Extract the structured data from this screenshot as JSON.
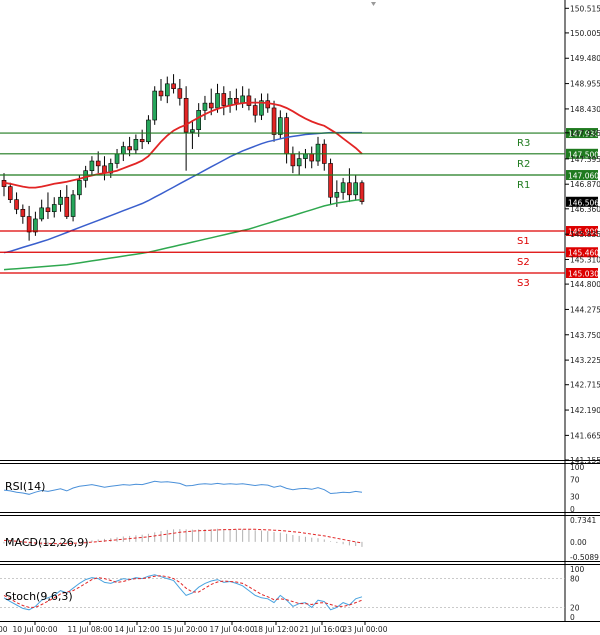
{
  "chart_data": {
    "type": "candlestick",
    "main": {
      "ylim": [
        141.155,
        150.687
      ],
      "yticks": [
        150.515,
        150.005,
        149.48,
        148.955,
        148.43,
        147.935,
        147.395,
        146.87,
        146.36,
        145.835,
        145.31,
        144.8,
        144.275,
        143.75,
        143.225,
        142.715,
        142.19,
        141.665,
        141.155
      ],
      "xticks": [
        "10 Jul 00:00",
        "11 Jul 08:00",
        "14 Jul 12:00",
        "15 Jul 20:00",
        "17 Jul 04:00",
        "18 Jul 12:00",
        "21 Jul 16:00",
        "23 Jul 00:00"
      ],
      "candles": [
        {
          "o": 146.95,
          "h": 147.1,
          "l": 146.62,
          "c": 146.82
        },
        {
          "o": 146.82,
          "h": 146.9,
          "l": 146.48,
          "c": 146.55
        },
        {
          "o": 146.55,
          "h": 146.7,
          "l": 146.25,
          "c": 146.35
        },
        {
          "o": 146.35,
          "h": 146.45,
          "l": 146.05,
          "c": 146.2
        },
        {
          "o": 146.2,
          "h": 146.42,
          "l": 145.7,
          "c": 145.88
        },
        {
          "o": 145.88,
          "h": 146.3,
          "l": 145.8,
          "c": 146.15
        },
        {
          "o": 146.15,
          "h": 146.55,
          "l": 146.1,
          "c": 146.38
        },
        {
          "o": 146.38,
          "h": 146.7,
          "l": 146.15,
          "c": 146.3
        },
        {
          "o": 146.3,
          "h": 146.6,
          "l": 146.18,
          "c": 146.45
        },
        {
          "o": 146.45,
          "h": 146.75,
          "l": 146.3,
          "c": 146.6
        },
        {
          "o": 146.6,
          "h": 146.85,
          "l": 146.15,
          "c": 146.2
        },
        {
          "o": 146.2,
          "h": 146.75,
          "l": 146.1,
          "c": 146.65
        },
        {
          "o": 146.65,
          "h": 147.05,
          "l": 146.55,
          "c": 146.95
        },
        {
          "o": 146.95,
          "h": 147.25,
          "l": 146.8,
          "c": 147.15
        },
        {
          "o": 147.15,
          "h": 147.45,
          "l": 147.05,
          "c": 147.35
        },
        {
          "o": 147.35,
          "h": 147.55,
          "l": 147.1,
          "c": 147.25
        },
        {
          "o": 147.25,
          "h": 147.45,
          "l": 146.95,
          "c": 147.1
        },
        {
          "o": 147.1,
          "h": 147.4,
          "l": 147.0,
          "c": 147.3
        },
        {
          "o": 147.3,
          "h": 147.6,
          "l": 147.2,
          "c": 147.5
        },
        {
          "o": 147.5,
          "h": 147.75,
          "l": 147.35,
          "c": 147.65
        },
        {
          "o": 147.65,
          "h": 147.85,
          "l": 147.45,
          "c": 147.58
        },
        {
          "o": 147.58,
          "h": 147.9,
          "l": 147.5,
          "c": 147.8
        },
        {
          "o": 147.8,
          "h": 148.0,
          "l": 147.6,
          "c": 147.75
        },
        {
          "o": 147.75,
          "h": 148.3,
          "l": 147.7,
          "c": 148.2
        },
        {
          "o": 148.2,
          "h": 148.9,
          "l": 148.1,
          "c": 148.8
        },
        {
          "o": 148.8,
          "h": 149.05,
          "l": 148.6,
          "c": 148.7
        },
        {
          "o": 148.7,
          "h": 149.1,
          "l": 148.55,
          "c": 148.95
        },
        {
          "o": 148.95,
          "h": 149.15,
          "l": 148.75,
          "c": 148.85
        },
        {
          "o": 148.85,
          "h": 149.05,
          "l": 148.5,
          "c": 148.65
        },
        {
          "o": 148.65,
          "h": 148.9,
          "l": 147.15,
          "c": 147.95
        },
        {
          "o": 147.95,
          "h": 148.2,
          "l": 147.6,
          "c": 148.0
        },
        {
          "o": 148.0,
          "h": 148.55,
          "l": 147.85,
          "c": 148.4
        },
        {
          "o": 148.4,
          "h": 148.7,
          "l": 148.2,
          "c": 148.55
        },
        {
          "o": 148.55,
          "h": 148.85,
          "l": 148.3,
          "c": 148.45
        },
        {
          "o": 148.45,
          "h": 148.95,
          "l": 148.35,
          "c": 148.75
        },
        {
          "o": 148.75,
          "h": 148.9,
          "l": 148.3,
          "c": 148.5
        },
        {
          "o": 148.5,
          "h": 148.8,
          "l": 148.35,
          "c": 148.65
        },
        {
          "o": 148.65,
          "h": 148.85,
          "l": 148.4,
          "c": 148.55
        },
        {
          "o": 148.55,
          "h": 148.9,
          "l": 148.45,
          "c": 148.7
        },
        {
          "o": 148.7,
          "h": 148.85,
          "l": 148.4,
          "c": 148.5
        },
        {
          "o": 148.5,
          "h": 148.65,
          "l": 148.15,
          "c": 148.3
        },
        {
          "o": 148.3,
          "h": 148.75,
          "l": 148.2,
          "c": 148.6
        },
        {
          "o": 148.6,
          "h": 148.75,
          "l": 148.35,
          "c": 148.45
        },
        {
          "o": 148.45,
          "h": 148.6,
          "l": 147.75,
          "c": 147.9
        },
        {
          "o": 147.9,
          "h": 148.4,
          "l": 147.8,
          "c": 148.25
        },
        {
          "o": 148.25,
          "h": 148.35,
          "l": 147.3,
          "c": 147.5
        },
        {
          "o": 147.5,
          "h": 147.65,
          "l": 147.1,
          "c": 147.25
        },
        {
          "o": 147.25,
          "h": 147.55,
          "l": 147.05,
          "c": 147.4
        },
        {
          "o": 147.4,
          "h": 147.6,
          "l": 147.2,
          "c": 147.5
        },
        {
          "o": 147.5,
          "h": 147.65,
          "l": 147.2,
          "c": 147.35
        },
        {
          "o": 147.35,
          "h": 147.85,
          "l": 147.25,
          "c": 147.7
        },
        {
          "o": 147.7,
          "h": 147.8,
          "l": 147.15,
          "c": 147.3
        },
        {
          "o": 147.3,
          "h": 147.4,
          "l": 146.45,
          "c": 146.6
        },
        {
          "o": 146.6,
          "h": 146.95,
          "l": 146.4,
          "c": 146.7
        },
        {
          "o": 146.7,
          "h": 147.0,
          "l": 146.55,
          "c": 146.9
        },
        {
          "o": 146.9,
          "h": 147.2,
          "l": 146.5,
          "c": 146.65
        },
        {
          "o": 146.65,
          "h": 147.05,
          "l": 146.55,
          "c": 146.9
        },
        {
          "o": 146.9,
          "h": 146.95,
          "l": 146.45,
          "c": 146.51
        }
      ],
      "ma_red": [
        146.9,
        146.88,
        146.85,
        146.82,
        146.8,
        146.8,
        146.82,
        146.85,
        146.88,
        146.9,
        146.92,
        146.95,
        146.98,
        147.02,
        147.05,
        147.08,
        147.1,
        147.12,
        147.15,
        147.2,
        147.25,
        147.3,
        147.36,
        147.45,
        147.6,
        147.75,
        147.88,
        147.98,
        148.05,
        148.1,
        148.18,
        148.25,
        148.32,
        148.38,
        148.43,
        148.47,
        148.5,
        148.53,
        148.55,
        148.56,
        148.56,
        148.56,
        148.55,
        148.53,
        148.5,
        148.45,
        148.38,
        148.3,
        148.23,
        148.17,
        148.12,
        148.08,
        148.0,
        147.92,
        147.82,
        147.72,
        147.62,
        147.5
      ],
      "ma_blue": [
        145.45,
        145.48,
        145.52,
        145.56,
        145.6,
        145.64,
        145.68,
        145.72,
        145.77,
        145.82,
        145.87,
        145.92,
        145.97,
        146.02,
        146.07,
        146.12,
        146.17,
        146.22,
        146.27,
        146.32,
        146.37,
        146.42,
        146.47,
        146.53,
        146.6,
        146.67,
        146.74,
        146.81,
        146.88,
        146.95,
        147.02,
        147.09,
        147.16,
        147.23,
        147.3,
        147.37,
        147.44,
        147.5,
        147.56,
        147.61,
        147.66,
        147.71,
        147.75,
        147.78,
        147.81,
        147.84,
        147.86,
        147.88,
        147.9,
        147.91,
        147.92,
        147.93,
        147.94,
        147.94,
        147.94,
        147.94,
        147.94,
        147.94
      ],
      "ma_green": [
        145.1,
        145.11,
        145.12,
        145.13,
        145.14,
        145.15,
        145.16,
        145.17,
        145.18,
        145.19,
        145.2,
        145.22,
        145.24,
        145.26,
        145.28,
        145.3,
        145.32,
        145.34,
        145.36,
        145.38,
        145.4,
        145.42,
        145.44,
        145.46,
        145.49,
        145.52,
        145.55,
        145.58,
        145.61,
        145.64,
        145.67,
        145.7,
        145.73,
        145.76,
        145.79,
        145.82,
        145.85,
        145.88,
        145.91,
        145.94,
        145.98,
        146.02,
        146.06,
        146.1,
        146.14,
        146.18,
        146.22,
        146.26,
        146.3,
        146.34,
        146.38,
        146.42,
        146.45,
        146.48,
        146.5,
        146.52,
        146.54,
        146.55
      ],
      "levels": [
        {
          "name": "R3",
          "value": 147.93,
          "label": "147.930",
          "kind": "resistance"
        },
        {
          "name": "R2",
          "value": 147.5,
          "label": "147.500",
          "kind": "resistance"
        },
        {
          "name": "R1",
          "value": 147.06,
          "label": "147.060",
          "kind": "resistance"
        },
        {
          "name": "S1",
          "value": 145.9,
          "label": "145.900",
          "kind": "support"
        },
        {
          "name": "S2",
          "value": 145.46,
          "label": "145.460",
          "kind": "support"
        },
        {
          "name": "S3",
          "value": 145.03,
          "label": "145.030",
          "kind": "support"
        }
      ],
      "current_price": "146.506"
    },
    "rsi": {
      "title": "RSI(14)",
      "ylim": [
        0,
        100
      ],
      "yticks": [
        100,
        70,
        30,
        0
      ],
      "values": [
        45,
        43,
        40,
        38,
        35,
        40,
        44,
        42,
        45,
        48,
        43,
        50,
        54,
        56,
        58,
        55,
        52,
        54,
        56,
        58,
        57,
        59,
        58,
        62,
        66,
        64,
        65,
        63,
        61,
        55,
        56,
        59,
        60,
        59,
        61,
        59,
        60,
        59,
        60,
        58,
        56,
        58,
        57,
        52,
        55,
        49,
        46,
        48,
        49,
        47,
        51,
        46,
        37,
        38,
        40,
        39,
        42,
        40
      ]
    },
    "macd": {
      "title": "MACD(12,26,9)",
      "ylim": [
        -0.5089,
        0.7341
      ],
      "yticks": [
        "0.7341",
        "0.00",
        "-0.5089"
      ],
      "histogram": [
        -0.05,
        -0.06,
        -0.08,
        -0.1,
        -0.12,
        -0.12,
        -0.11,
        -0.1,
        -0.09,
        -0.07,
        -0.07,
        -0.05,
        -0.02,
        0.01,
        0.05,
        0.08,
        0.1,
        0.12,
        0.15,
        0.18,
        0.2,
        0.22,
        0.24,
        0.27,
        0.32,
        0.36,
        0.4,
        0.42,
        0.43,
        0.42,
        0.41,
        0.42,
        0.43,
        0.43,
        0.44,
        0.43,
        0.43,
        0.42,
        0.42,
        0.41,
        0.39,
        0.38,
        0.36,
        0.33,
        0.31,
        0.27,
        0.23,
        0.2,
        0.17,
        0.14,
        0.12,
        0.08,
        0.02,
        -0.04,
        -0.08,
        -0.12,
        -0.14,
        -0.17
      ],
      "signal": [
        0.05,
        0.04,
        0.02,
        0.0,
        -0.02,
        -0.04,
        -0.05,
        -0.06,
        -0.06,
        -0.06,
        -0.06,
        -0.05,
        -0.04,
        -0.03,
        -0.01,
        0.01,
        0.03,
        0.05,
        0.07,
        0.09,
        0.11,
        0.13,
        0.15,
        0.17,
        0.2,
        0.23,
        0.26,
        0.29,
        0.32,
        0.34,
        0.36,
        0.37,
        0.38,
        0.39,
        0.4,
        0.41,
        0.41,
        0.42,
        0.42,
        0.42,
        0.42,
        0.41,
        0.4,
        0.39,
        0.38,
        0.36,
        0.34,
        0.32,
        0.29,
        0.26,
        0.23,
        0.2,
        0.16,
        0.12,
        0.08,
        0.04,
        0.0,
        -0.04
      ]
    },
    "stoch": {
      "title": "Stoch(9,6,3)",
      "ylim": [
        0,
        100
      ],
      "yticks": [
        100,
        80,
        20,
        0
      ],
      "k": [
        40,
        32,
        25,
        18,
        15,
        22,
        35,
        40,
        45,
        55,
        50,
        60,
        70,
        78,
        82,
        80,
        72,
        70,
        75,
        80,
        78,
        82,
        80,
        85,
        88,
        84,
        80,
        76,
        60,
        45,
        50,
        62,
        70,
        75,
        78,
        72,
        74,
        70,
        65,
        55,
        45,
        40,
        38,
        30,
        45,
        35,
        22,
        28,
        30,
        20,
        35,
        32,
        15,
        20,
        30,
        25,
        38,
        42
      ],
      "d": [
        45,
        38,
        30,
        24,
        20,
        20,
        26,
        33,
        40,
        48,
        52,
        55,
        62,
        70,
        78,
        82,
        80,
        76,
        72,
        74,
        78,
        80,
        80,
        82,
        85,
        86,
        84,
        80,
        72,
        60,
        52,
        52,
        60,
        68,
        73,
        75,
        74,
        73,
        70,
        63,
        55,
        47,
        42,
        36,
        38,
        36,
        32,
        28,
        28,
        26,
        29,
        30,
        26,
        22,
        22,
        25,
        30,
        35
      ]
    },
    "colors": {
      "bull": "#26a65b",
      "bear": "#e22525",
      "wick": "#000000",
      "ma_red": "#e22525",
      "ma_blue": "#3a5fcd",
      "ma_green": "#2fa84f",
      "resistance": "#1f7a1f",
      "support": "#dd0000",
      "rsi": "#4a90d9",
      "macd_signal": "#e22525",
      "macd_hist": "#b0b0b0",
      "stoch_k": "#4aa3df",
      "stoch_d": "#e22525"
    }
  }
}
